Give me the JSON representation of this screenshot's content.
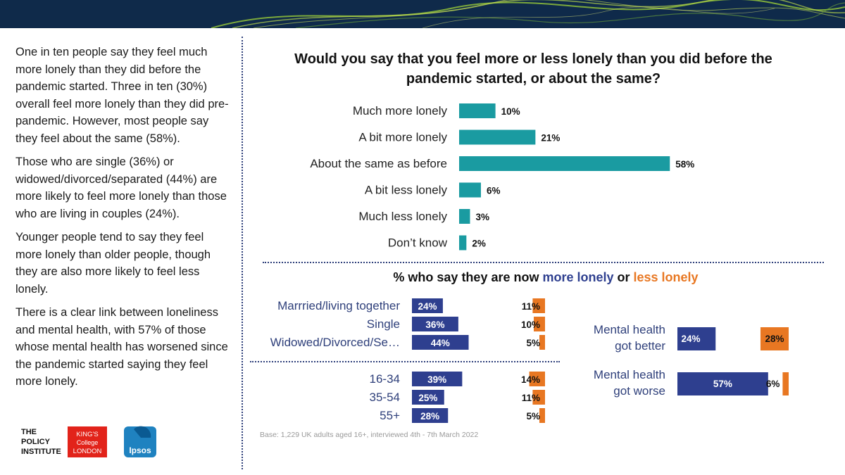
{
  "left_panel": {
    "paragraphs": [
      "One in ten people say they feel much more lonely than they did before the pandemic started. Three in ten (30%) overall feel more lonely than they did pre-pandemic. However, most people say they feel about the same (58%).",
      "Those who are single (36%) or widowed/divorced/separated (44%) are more likely to feel more lonely than those who are living in couples (24%).",
      "Younger people tend to say they feel more lonely than older people, though they are also more likely to feel less lonely.",
      "There is a clear link between loneliness and mental health, with 57% of those whose mental health has worsened since the pandemic started saying they feel more lonely."
    ]
  },
  "logos": {
    "policy_institute": [
      "THE",
      "POLICY",
      "INSTITUTE"
    ],
    "kings": [
      "KING'S",
      "College",
      "LONDON"
    ],
    "ipsos": "Ipsos"
  },
  "colors": {
    "teal": "#1a9ba1",
    "navy": "#2e3f8f",
    "orange": "#e87722",
    "banner": "#0f2a4a"
  },
  "subtitle": {
    "prefix": "% who say they are now ",
    "more": "more lonely",
    "or": " or ",
    "less": "less lonely"
  },
  "base_note": "Base: 1,229  UK adults aged 16+, interviewed 4th - 7th March 2022",
  "chart_data": [
    {
      "type": "bar",
      "orientation": "horizontal",
      "title": "Would you say that you feel more or less lonely than you did before the pandemic started, or about the same?",
      "categories": [
        "Much more lonely",
        "A bit more lonely",
        "About the same as before",
        "A bit less lonely",
        "Much less lonely",
        "Don’t know"
      ],
      "values": [
        10,
        21,
        58,
        6,
        3,
        2
      ],
      "value_labels": [
        "10%",
        "21%",
        "58%",
        "6%",
        "3%",
        "2%"
      ],
      "unit": "%",
      "color": "#1a9ba1"
    },
    {
      "type": "bar",
      "orientation": "horizontal",
      "title": "",
      "groups": [
        {
          "categories": [
            "Marrried/living together",
            "Single",
            "Widowed/Divorced/Se…"
          ],
          "more_lonely": [
            24,
            36,
            44
          ],
          "less_lonely": [
            11,
            10,
            5
          ],
          "more_labels": [
            "24%",
            "36%",
            "44%"
          ],
          "less_labels": [
            "11%",
            "10%",
            "5%"
          ]
        },
        {
          "categories": [
            "16-34",
            "35-54",
            "55+"
          ],
          "more_lonely": [
            39,
            25,
            28
          ],
          "less_lonely": [
            14,
            11,
            5
          ],
          "more_labels": [
            "39%",
            "25%",
            "28%"
          ],
          "less_labels": [
            "14%",
            "11%",
            "5%"
          ]
        }
      ],
      "series_colors": {
        "more_lonely": "#2e3f8f",
        "less_lonely": "#e87722"
      }
    },
    {
      "type": "bar",
      "orientation": "horizontal",
      "title": "",
      "categories": [
        [
          "Mental health",
          "got better"
        ],
        [
          "Mental health",
          "got worse"
        ]
      ],
      "more_lonely": [
        24,
        57
      ],
      "less_lonely": [
        28,
        6
      ],
      "more_labels": [
        "24%",
        "57%"
      ],
      "less_labels": [
        "28%",
        "6%"
      ],
      "series_colors": {
        "more_lonely": "#2e3f8f",
        "less_lonely": "#e87722"
      }
    }
  ]
}
